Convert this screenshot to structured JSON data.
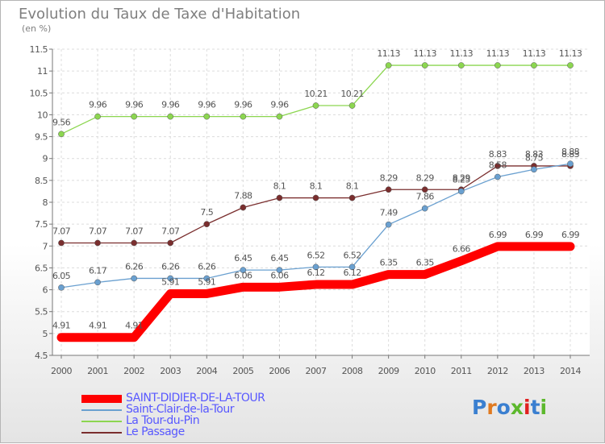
{
  "chart_data": {
    "type": "line",
    "title": "Evolution du Taux de Taxe d'Habitation",
    "unit_label": "(en %)",
    "xlabel": "",
    "ylabel": "",
    "x": [
      "2000",
      "2001",
      "2002",
      "2003",
      "2004",
      "2005",
      "2006",
      "2007",
      "2008",
      "2009",
      "2010",
      "2011",
      "2012",
      "2013",
      "2014"
    ],
    "ylim": [
      4.5,
      11.5
    ],
    "yticks": [
      "4.5",
      "5",
      "5.5",
      "6",
      "6.5",
      "7",
      "7.5",
      "8",
      "8.5",
      "9",
      "9.5",
      "10",
      "10.5",
      "11",
      "11.5"
    ],
    "grid": true,
    "legend_position": "bottom-left",
    "series": [
      {
        "name": "SAINT-DIDIER-DE-LA-TOUR",
        "color": "#ff0000",
        "values": [
          4.91,
          4.91,
          4.91,
          5.91,
          5.91,
          6.06,
          6.06,
          6.12,
          6.12,
          6.35,
          6.35,
          6.66,
          6.99,
          6.99,
          6.99
        ],
        "labels": [
          "4.91",
          "4.91",
          "4.91",
          "5.91",
          "5.91",
          "6.06",
          "6.06",
          "6.12",
          "6.12",
          "6.35",
          "6.35",
          "6.66",
          "6.99",
          "6.99",
          "6.99"
        ]
      },
      {
        "name": "Saint-Clair-de-la-Tour",
        "color": "#6aa0d0",
        "values": [
          6.05,
          6.17,
          6.26,
          6.26,
          6.26,
          6.45,
          6.45,
          6.52,
          6.52,
          7.49,
          7.86,
          8.25,
          8.58,
          8.75,
          8.88
        ],
        "labels": [
          "6.05",
          "6.17",
          "6.26",
          "6.26",
          "6.26",
          "6.45",
          "6.45",
          "6.52",
          "6.52",
          "7.49",
          "7.86",
          "8.25",
          "8.58",
          "8.75",
          "8.88"
        ]
      },
      {
        "name": "La Tour-du-Pin",
        "color": "#8cd650",
        "values": [
          9.56,
          9.96,
          9.96,
          9.96,
          9.96,
          9.96,
          9.96,
          10.21,
          10.21,
          11.13,
          11.13,
          11.13,
          11.13,
          11.13,
          11.13
        ],
        "labels": [
          "9.56",
          "9.96",
          "9.96",
          "9.96",
          "9.96",
          "9.96",
          "9.96",
          "10.21",
          "10.21",
          "11.13",
          "11.13",
          "11.13",
          "11.13",
          "11.13",
          "11.13"
        ]
      },
      {
        "name": "Le Passage",
        "color": "#7a2e2e",
        "values": [
          7.07,
          7.07,
          7.07,
          7.07,
          7.5,
          7.88,
          8.1,
          8.1,
          8.1,
          8.29,
          8.29,
          8.29,
          8.83,
          8.83,
          8.83
        ],
        "labels": [
          "7.07",
          "7.07",
          "7.07",
          "7.07",
          "7.5",
          "7.88",
          "8.1",
          "8.1",
          "8.1",
          "8.29",
          "8.29",
          "8.29",
          "8.83",
          "8.83",
          "8.83"
        ]
      }
    ]
  },
  "brand": {
    "logo_text": "Proxiti",
    "letter_colors": [
      "#3a7fd0",
      "#e07a20",
      "#3a7fd0",
      "#5cb82c",
      "#e02020",
      "#3a7fd0",
      "#5cb82c"
    ]
  }
}
